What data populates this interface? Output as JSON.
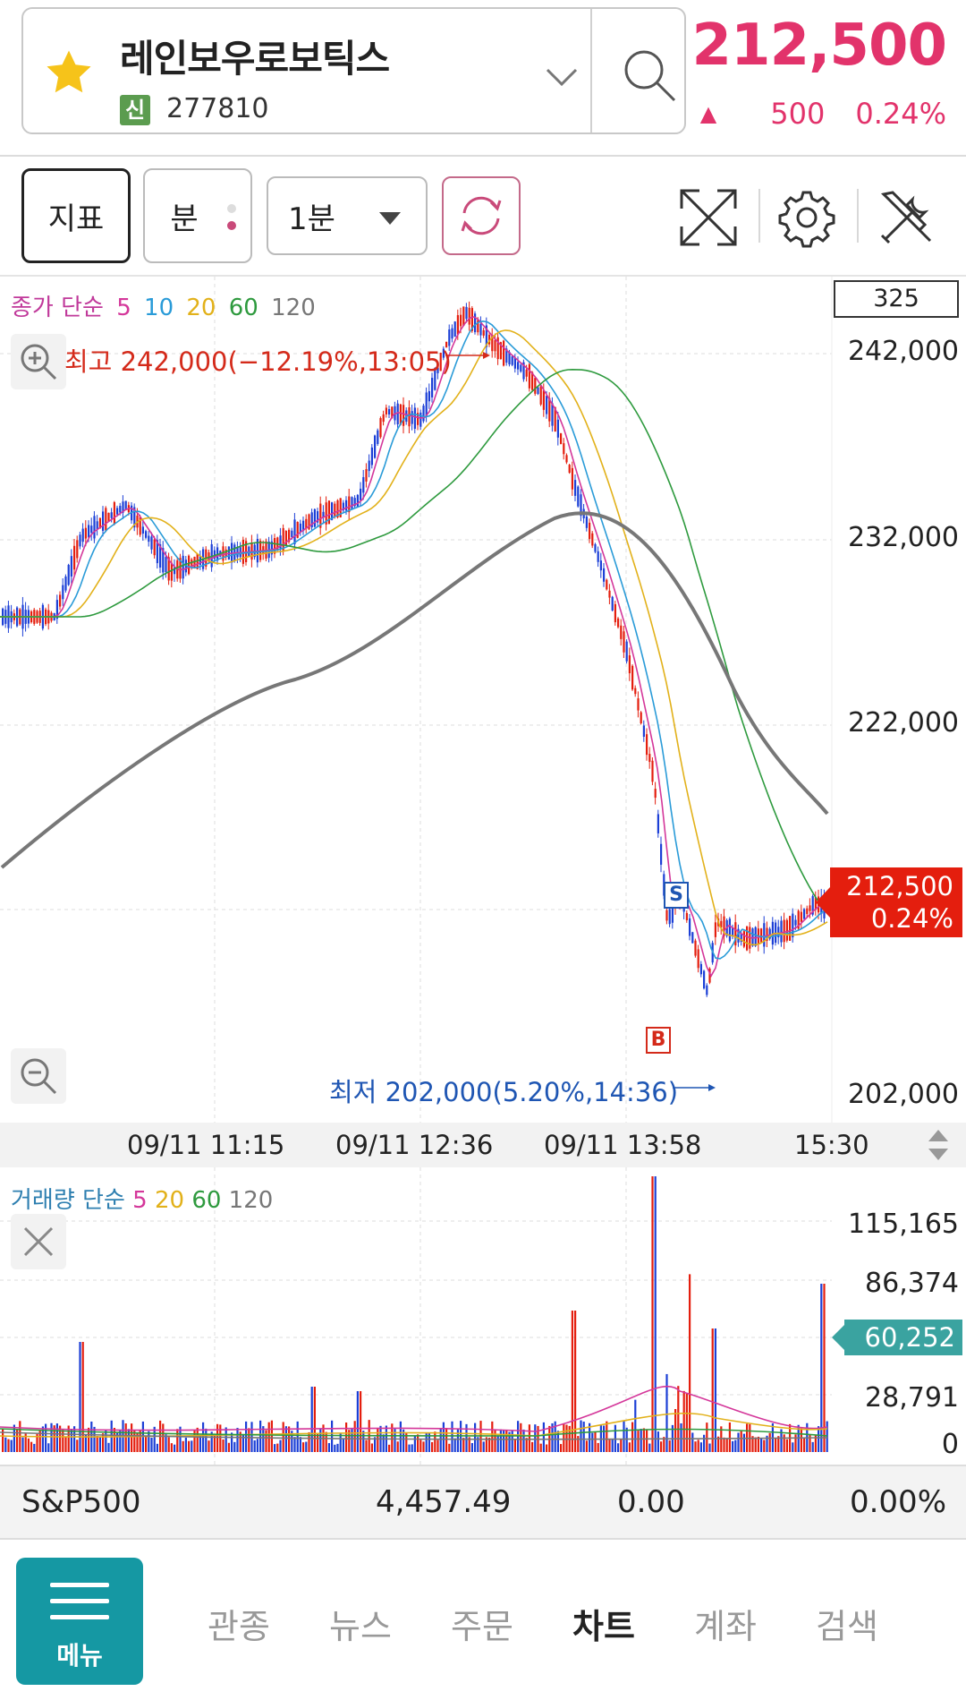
{
  "header": {
    "stock_name": "레인보우로보틱스",
    "badge": "신",
    "stock_code": "277810",
    "price": "212,500",
    "change_arrow": "▲",
    "change": "500",
    "change_pct": "0.24%"
  },
  "toolbar": {
    "indicator_label": "지표",
    "minute_label": "분",
    "period_value": "1분"
  },
  "price_chart": {
    "legend": {
      "prefix": "종가 단순",
      "ma5": "5",
      "ma10": "10",
      "ma20": "20",
      "ma60": "60",
      "ma120": "120"
    },
    "count_box": "325",
    "high_label": "최고 242,000(−12.19%,13:05)",
    "low_label": "최저 202,000(5.20%,14:36)",
    "y_labels": [
      "242,000",
      "232,000",
      "222,000",
      "202,000"
    ],
    "current_price": "212,500",
    "current_pct": "0.24%",
    "sell_marker": "S",
    "buy_marker": "B",
    "colors": {
      "ma5": "#d4379a",
      "ma10": "#2a9bd8",
      "ma20": "#e2b11a",
      "ma60": "#2e9a3e",
      "ma120": "#777777",
      "up": "#e41e0e",
      "down": "#1c3fd6"
    }
  },
  "time_axis": [
    "09/11 11:15",
    "09/11 12:36",
    "09/11 13:58",
    "15:30"
  ],
  "volume_chart": {
    "legend": {
      "prefix": "거래량 단순",
      "ma5": "5",
      "ma20": "20",
      "ma60": "60",
      "ma120": "120"
    },
    "y_labels": [
      "115,165",
      "86,374",
      "28,791",
      "0"
    ],
    "current_volume": "60,252"
  },
  "index_bar": {
    "name": "S&P500",
    "value": "4,457.49",
    "change": "0.00",
    "change_pct": "0.00%"
  },
  "bottom_nav": {
    "menu_label": "메뉴",
    "items": [
      "관종",
      "뉴스",
      "주문",
      "차트",
      "계좌",
      "검색"
    ],
    "active": "차트"
  }
}
